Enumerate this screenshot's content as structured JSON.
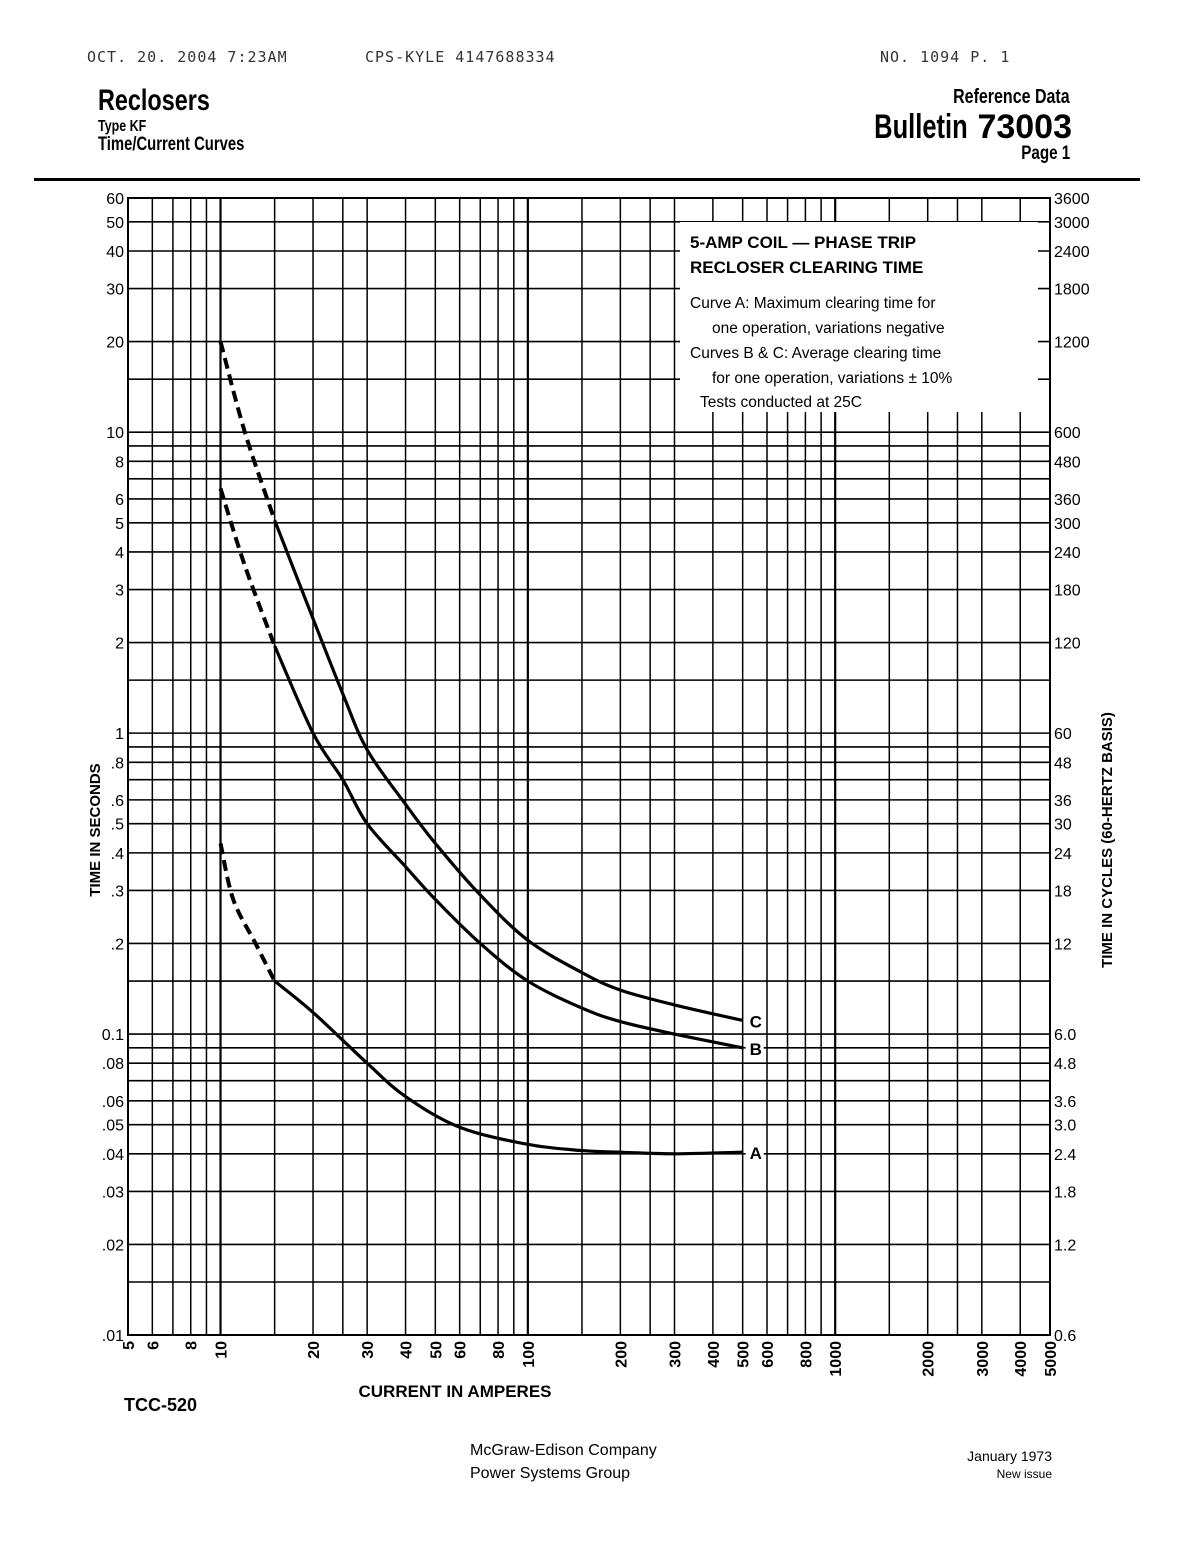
{
  "fax_header": {
    "left": "OCT. 20. 2004  7:23AM",
    "middle": "CPS-KYLE 4147688334",
    "right": "NO. 1094   P. 1"
  },
  "header": {
    "title": "Reclosers",
    "subtitle1": "Type KF",
    "subtitle2": "Time/Current Curves",
    "ref": "Reference Data",
    "bulletin_word": "Bulletin",
    "bulletin_number": "73003",
    "page": "Page 1"
  },
  "legend_box": {
    "title1": "5-AMP COIL — PHASE TRIP",
    "title2": "RECLOSER CLEARING TIME",
    "line1": "Curve A: Maximum clearing time for",
    "line2": "one operation, variations negative",
    "line3": "Curves B & C: Average clearing time",
    "line4": "for one operation, variations ± 10%",
    "line5": "Tests conducted at 25C"
  },
  "chart_data": {
    "type": "line",
    "xlabel": "CURRENT IN AMPERES",
    "ylabel": "TIME IN SECONDS",
    "y2label": "TIME IN CYCLES (60-HERTZ BASIS)",
    "x_scale": "log",
    "y_scale": "log",
    "xlim": [
      5,
      5000
    ],
    "ylim": [
      0.01,
      60
    ],
    "grid": true,
    "x_ticks": [
      "5",
      "6",
      "8",
      "10",
      "20",
      "30",
      "40",
      "50",
      "60",
      "80",
      "100",
      "200",
      "300",
      "400",
      "500",
      "600",
      "800",
      "1000",
      "2000",
      "3000",
      "4000",
      "5000"
    ],
    "y_ticks": [
      {
        "v": 60,
        "l": "60"
      },
      {
        "v": 50,
        "l": "50"
      },
      {
        "v": 40,
        "l": "40"
      },
      {
        "v": 30,
        "l": "30"
      },
      {
        "v": 20,
        "l": "20"
      },
      {
        "v": 10,
        "l": "10"
      },
      {
        "v": 8,
        "l": "8"
      },
      {
        "v": 6,
        "l": "6"
      },
      {
        "v": 5,
        "l": "5"
      },
      {
        "v": 4,
        "l": "4"
      },
      {
        "v": 3,
        "l": "3"
      },
      {
        "v": 2,
        "l": "2"
      },
      {
        "v": 1,
        "l": "1"
      },
      {
        "v": 0.8,
        "l": ".8"
      },
      {
        "v": 0.6,
        "l": ".6"
      },
      {
        "v": 0.5,
        "l": ".5"
      },
      {
        "v": 0.4,
        "l": ".4"
      },
      {
        "v": 0.3,
        "l": ".3"
      },
      {
        "v": 0.2,
        "l": ".2"
      },
      {
        "v": 0.1,
        "l": "0.1"
      },
      {
        "v": 0.08,
        "l": ".08"
      },
      {
        "v": 0.06,
        "l": ".06"
      },
      {
        "v": 0.05,
        "l": ".05"
      },
      {
        "v": 0.04,
        "l": ".04"
      },
      {
        "v": 0.03,
        "l": ".03"
      },
      {
        "v": 0.02,
        "l": ".02"
      },
      {
        "v": 0.01,
        "l": ".01"
      }
    ],
    "y2_ticks": [
      {
        "v": 60,
        "l": "3600"
      },
      {
        "v": 50,
        "l": "3000"
      },
      {
        "v": 40,
        "l": "2400"
      },
      {
        "v": 30,
        "l": "1800"
      },
      {
        "v": 20,
        "l": "1200"
      },
      {
        "v": 10,
        "l": "600"
      },
      {
        "v": 8,
        "l": "480"
      },
      {
        "v": 6,
        "l": "360"
      },
      {
        "v": 5,
        "l": "300"
      },
      {
        "v": 4,
        "l": "240"
      },
      {
        "v": 3,
        "l": "180"
      },
      {
        "v": 2,
        "l": "120"
      },
      {
        "v": 1,
        "l": "60"
      },
      {
        "v": 0.8,
        "l": "48"
      },
      {
        "v": 0.6,
        "l": "36"
      },
      {
        "v": 0.5,
        "l": "30"
      },
      {
        "v": 0.4,
        "l": "24"
      },
      {
        "v": 0.3,
        "l": "18"
      },
      {
        "v": 0.2,
        "l": "12"
      },
      {
        "v": 0.1,
        "l": "6.0"
      },
      {
        "v": 0.08,
        "l": "4.8"
      },
      {
        "v": 0.06,
        "l": "3.6"
      },
      {
        "v": 0.05,
        "l": "3.0"
      },
      {
        "v": 0.04,
        "l": "2.4"
      },
      {
        "v": 0.03,
        "l": "1.8"
      },
      {
        "v": 0.02,
        "l": "1.2"
      },
      {
        "v": 0.01,
        "l": "0.6"
      }
    ],
    "series": [
      {
        "name": "C",
        "dashed": [
          [
            10,
            20
          ],
          [
            12,
            10
          ],
          [
            15,
            5.1
          ]
        ],
        "solid": [
          [
            15,
            5.1
          ],
          [
            20,
            2.4
          ],
          [
            25,
            1.35
          ],
          [
            30,
            0.88
          ],
          [
            40,
            0.58
          ],
          [
            50,
            0.43
          ],
          [
            70,
            0.29
          ],
          [
            100,
            0.205
          ],
          [
            150,
            0.16
          ],
          [
            200,
            0.14
          ],
          [
            300,
            0.125
          ],
          [
            500,
            0.111
          ]
        ]
      },
      {
        "name": "B",
        "dashed": [
          [
            10,
            6.5
          ],
          [
            12,
            3.6
          ],
          [
            15,
            1.95
          ]
        ],
        "solid": [
          [
            15,
            1.95
          ],
          [
            20,
            1.0
          ],
          [
            25,
            0.7
          ],
          [
            30,
            0.5
          ],
          [
            40,
            0.36
          ],
          [
            50,
            0.28
          ],
          [
            70,
            0.2
          ],
          [
            100,
            0.15
          ],
          [
            150,
            0.122
          ],
          [
            200,
            0.11
          ],
          [
            300,
            0.1
          ],
          [
            500,
            0.09
          ]
        ]
      },
      {
        "name": "A",
        "dashed": [
          [
            10,
            0.43
          ],
          [
            11,
            0.28
          ],
          [
            13,
            0.2
          ],
          [
            15,
            0.15
          ]
        ],
        "solid": [
          [
            15,
            0.15
          ],
          [
            20,
            0.118
          ],
          [
            30,
            0.08
          ],
          [
            40,
            0.062
          ],
          [
            60,
            0.049
          ],
          [
            100,
            0.043
          ],
          [
            150,
            0.041
          ],
          [
            200,
            0.0405
          ],
          [
            300,
            0.04
          ],
          [
            500,
            0.0405
          ]
        ]
      }
    ]
  },
  "footer": {
    "code": "TCC-520",
    "company1": "McGraw-Edison Company",
    "company2": "Power Systems Group",
    "date": "January 1973",
    "issue": "New issue"
  }
}
